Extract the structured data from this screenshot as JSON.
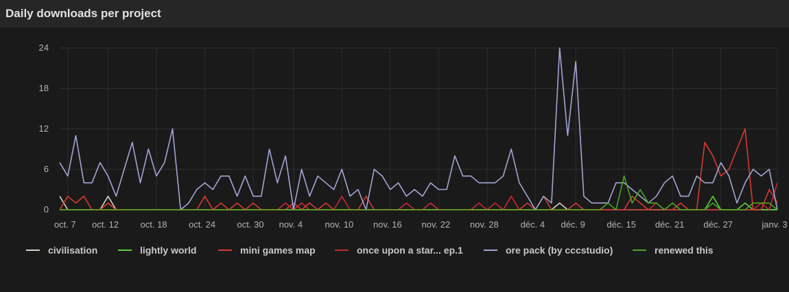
{
  "panel": {
    "title": "Daily downloads per project"
  },
  "chart_data": {
    "type": "line",
    "title": "Daily downloads per project",
    "xlabel": "",
    "ylabel": "",
    "ylim": [
      0,
      24
    ],
    "y_ticks": [
      0,
      6,
      12,
      18,
      24
    ],
    "grid": true,
    "legend_position": "bottom",
    "x_tick_labels": [
      "oct. 7",
      "oct. 12",
      "oct. 18",
      "oct. 24",
      "oct. 30",
      "nov. 4",
      "nov. 10",
      "nov. 16",
      "nov. 22",
      "nov. 28",
      "déc. 4",
      "déc. 9",
      "déc. 15",
      "déc. 21",
      "déc. 27",
      "janv. 3"
    ],
    "x_tick_days": [
      1,
      6,
      12,
      18,
      24,
      29,
      35,
      41,
      47,
      53,
      59,
      64,
      70,
      76,
      82,
      89
    ],
    "x_range": [
      0,
      89
    ],
    "series": [
      {
        "name": "civilisation",
        "color": "#d8d3c4",
        "values": [
          2,
          0,
          0,
          0,
          0,
          0,
          2,
          0,
          0,
          0,
          0,
          0,
          0,
          0,
          0,
          0,
          0,
          0,
          0,
          0,
          0,
          0,
          0,
          0,
          0,
          0,
          0,
          0,
          0,
          0,
          0,
          0,
          0,
          0,
          0,
          0,
          0,
          0,
          0,
          0,
          0,
          0,
          0,
          0,
          0,
          0,
          0,
          0,
          0,
          0,
          0,
          0,
          0,
          0,
          0,
          0,
          0,
          0,
          0,
          0,
          0,
          0,
          1,
          0,
          0,
          0,
          0,
          0,
          0,
          0,
          0,
          0,
          0,
          0,
          0,
          0,
          0,
          0,
          0,
          0,
          0,
          0,
          0,
          0,
          0,
          0,
          0,
          0,
          0,
          0
        ]
      },
      {
        "name": "lightly world",
        "color": "#5ecf3a",
        "values": [
          0,
          0,
          0,
          0,
          0,
          0,
          0,
          0,
          0,
          0,
          0,
          0,
          0,
          0,
          0,
          0,
          0,
          0,
          0,
          0,
          0,
          0,
          0,
          0,
          0,
          0,
          0,
          0,
          0,
          0,
          0,
          0,
          0,
          0,
          0,
          0,
          0,
          0,
          0,
          0,
          0,
          0,
          0,
          0,
          0,
          0,
          0,
          0,
          0,
          0,
          0,
          0,
          0,
          0,
          0,
          0,
          0,
          0,
          0,
          0,
          0,
          0,
          0,
          0,
          0,
          0,
          0,
          0,
          0,
          0,
          0,
          0,
          0,
          0,
          0,
          0,
          0,
          0,
          0,
          0,
          0,
          2,
          0,
          0,
          0,
          1,
          0,
          0,
          0,
          0
        ]
      },
      {
        "name": "mini games map",
        "color": "#d93a30",
        "values": [
          0,
          2,
          1,
          2,
          0,
          0,
          1,
          0,
          0,
          0,
          0,
          0,
          0,
          0,
          0,
          0,
          0,
          0,
          2,
          0,
          1,
          0,
          1,
          0,
          1,
          0,
          0,
          0,
          0,
          1,
          0,
          1,
          0,
          1,
          0,
          0,
          0,
          0,
          2,
          0,
          0,
          0,
          0,
          0,
          0,
          0,
          1,
          0,
          0,
          0,
          0,
          0,
          0,
          0,
          0,
          0,
          0,
          0,
          1,
          0,
          2,
          0,
          0,
          0,
          1,
          0,
          0,
          0,
          0,
          0,
          0,
          2,
          1,
          0,
          0,
          0,
          0,
          1,
          0,
          0,
          10,
          8,
          5,
          6,
          9,
          12,
          0,
          0,
          3,
          1
        ]
      },
      {
        "name": "once upon a star... ep.1",
        "color": "#c8282f",
        "values": [
          0,
          0,
          0,
          0,
          0,
          0,
          0,
          0,
          0,
          0,
          0,
          0,
          0,
          0,
          0,
          0,
          0,
          0,
          0,
          0,
          0,
          0,
          0,
          0,
          0,
          0,
          0,
          0,
          1,
          0,
          1,
          0,
          0,
          0,
          0,
          2,
          0,
          0,
          0,
          0,
          0,
          0,
          0,
          1,
          0,
          0,
          1,
          0,
          0,
          0,
          0,
          0,
          1,
          0,
          1,
          0,
          2,
          0,
          0,
          0,
          0,
          0,
          0,
          0,
          0,
          0,
          0,
          0,
          0,
          0,
          0,
          0,
          0,
          0,
          1,
          0,
          0,
          0,
          0,
          0,
          0,
          0,
          0,
          0,
          0,
          0,
          0,
          1,
          0,
          4
        ]
      },
      {
        "name": "ore pack (by cccstudio)",
        "color": "#a3a6d6",
        "values": [
          7,
          5,
          11,
          4,
          4,
          7,
          5,
          2,
          6,
          10,
          4,
          9,
          5,
          7,
          12,
          0,
          1,
          3,
          4,
          3,
          5,
          5,
          2,
          5,
          2,
          2,
          9,
          4,
          8,
          0,
          6,
          2,
          5,
          4,
          3,
          6,
          2,
          3,
          0,
          6,
          5,
          3,
          4,
          2,
          3,
          2,
          4,
          3,
          3,
          8,
          5,
          5,
          4,
          4,
          4,
          5,
          9,
          4,
          2,
          0,
          2,
          1,
          24,
          11,
          22,
          2,
          1,
          1,
          1,
          4,
          4,
          3,
          2,
          1,
          2,
          4,
          5,
          2,
          2,
          5,
          4,
          4,
          7,
          5,
          1,
          4,
          6,
          5,
          6,
          0
        ]
      },
      {
        "name": "renewed this",
        "color": "#4aa821",
        "values": [
          0,
          0,
          0,
          0,
          0,
          0,
          0,
          0,
          0,
          0,
          0,
          0,
          0,
          0,
          0,
          0,
          0,
          0,
          0,
          0,
          0,
          0,
          0,
          0,
          0,
          0,
          0,
          0,
          0,
          0,
          0,
          0,
          0,
          0,
          0,
          0,
          0,
          0,
          0,
          0,
          0,
          0,
          0,
          0,
          0,
          0,
          0,
          0,
          0,
          0,
          0,
          0,
          0,
          0,
          0,
          0,
          0,
          0,
          0,
          0,
          0,
          0,
          0,
          0,
          0,
          0,
          0,
          0,
          1,
          0,
          5,
          1,
          3,
          1,
          1,
          0,
          1,
          0,
          0,
          0,
          0,
          1,
          0,
          0,
          0,
          0,
          1,
          1,
          1,
          0
        ]
      }
    ]
  }
}
